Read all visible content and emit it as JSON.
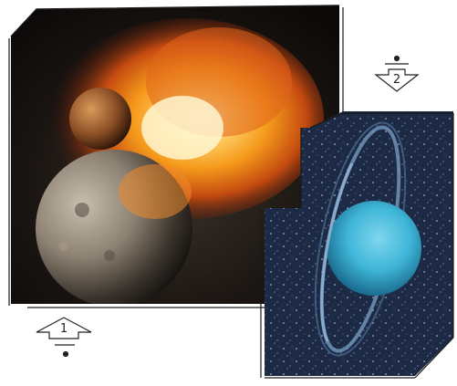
{
  "panels": {
    "collision": {
      "description_name": "planetary-collision-image"
    },
    "planet": {
      "description_name": "ringed-planet-image"
    }
  },
  "markers": {
    "one": {
      "label": "1"
    },
    "two": {
      "label": "2"
    }
  },
  "colors": {
    "space_dark": "#0e1520",
    "fire": "#f59a1b",
    "planet_blue": "#3fb6d8",
    "frame": "#1a1a1a"
  }
}
